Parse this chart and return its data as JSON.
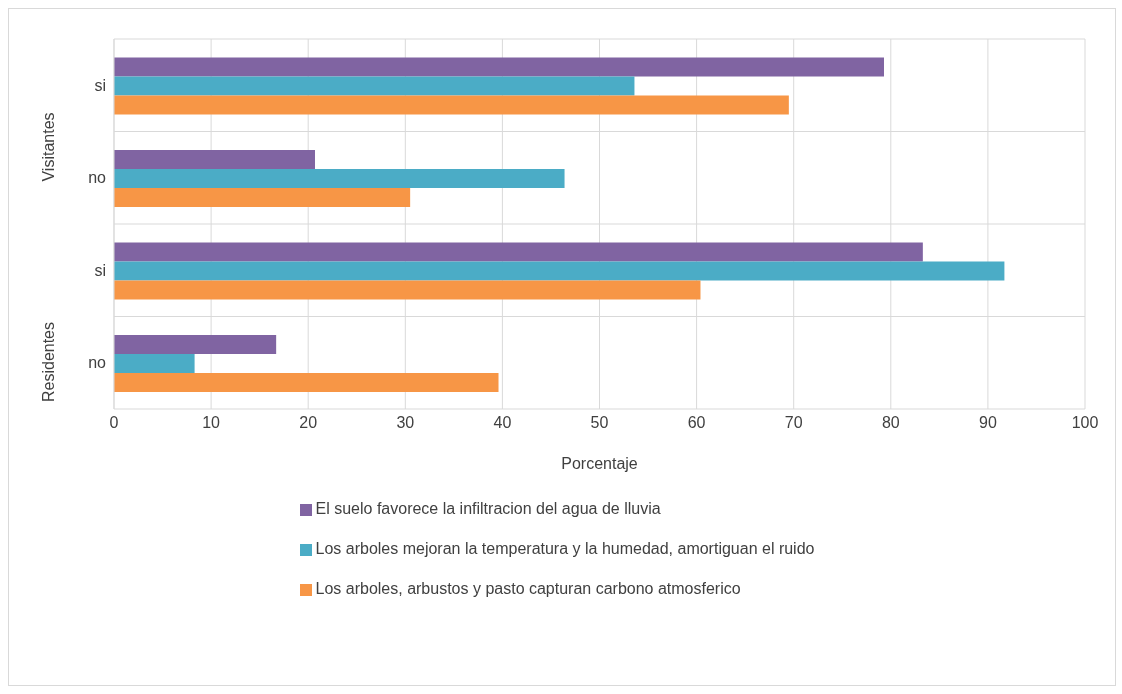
{
  "chart_data": {
    "type": "bar",
    "orientation": "horizontal",
    "xlabel": "Porcentaje",
    "categories": [
      "si",
      "no",
      "si",
      "no"
    ],
    "annotations": [
      "Visitantes",
      "Residentes"
    ],
    "series": [
      {
        "name": "El suelo favorece la infiltracion del agua de lluvia",
        "color": "#8064a2",
        "values": [
          79.3,
          20.7,
          83.3,
          16.7
        ]
      },
      {
        "name": "Los arboles mejoran la temperatura y la humedad,  amortiguan el ruido",
        "color": "#4bacc6",
        "values": [
          53.6,
          46.4,
          91.7,
          8.3
        ]
      },
      {
        "name": "Los arboles, arbustos y pasto capturan carbono atmosferico",
        "color": "#f79646",
        "values": [
          69.5,
          30.5,
          60.4,
          39.6
        ]
      }
    ],
    "xlim": [
      0,
      100
    ],
    "xticks": [
      0,
      10,
      20,
      30,
      40,
      50,
      60,
      70,
      80,
      90,
      100
    ],
    "grid": true,
    "legend": "bottom"
  }
}
